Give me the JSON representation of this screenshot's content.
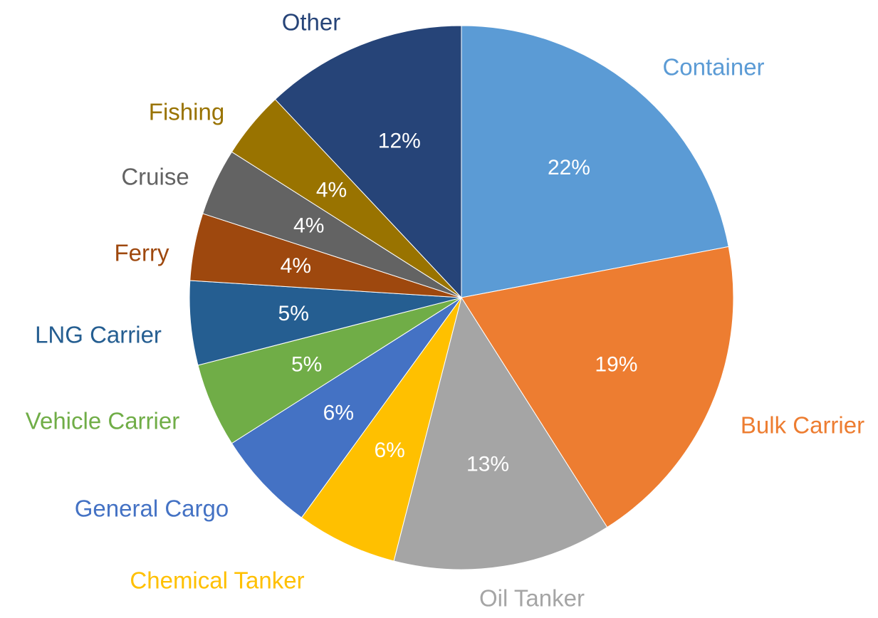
{
  "chart_data": {
    "type": "pie",
    "title": "",
    "slices": [
      {
        "label": "Container",
        "value": 22,
        "value_label": "22%",
        "color": "#5b9bd5"
      },
      {
        "label": "Bulk Carrier",
        "value": 19,
        "value_label": "19%",
        "color": "#ed7d31"
      },
      {
        "label": "Oil Tanker",
        "value": 13,
        "value_label": "13%",
        "color": "#a5a5a5"
      },
      {
        "label": "Chemical Tanker",
        "value": 6,
        "value_label": "6%",
        "color": "#ffc000"
      },
      {
        "label": "General Cargo",
        "value": 6,
        "value_label": "6%",
        "color": "#4472c4"
      },
      {
        "label": "Vehicle Carrier",
        "value": 5,
        "value_label": "5%",
        "color": "#70ad47"
      },
      {
        "label": "LNG Carrier",
        "value": 5,
        "value_label": "5%",
        "color": "#255e91"
      },
      {
        "label": "Ferry",
        "value": 4,
        "value_label": "4%",
        "color": "#9e480e"
      },
      {
        "label": "Cruise",
        "value": 4,
        "value_label": "4%",
        "color": "#636363"
      },
      {
        "label": "Fishing",
        "value": 4,
        "value_label": "4%",
        "color": "#997300"
      },
      {
        "label": "Other",
        "value": 12,
        "value_label": "12%",
        "color": "#264478"
      }
    ],
    "start_angle_deg": 0,
    "direction": "clockwise",
    "legend": "none",
    "labels": "outside-category-inside-percent"
  }
}
